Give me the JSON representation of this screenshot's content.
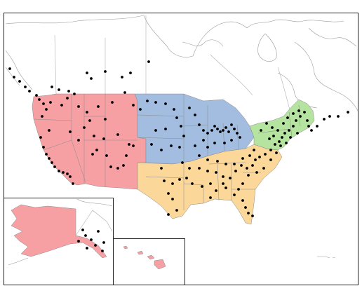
{
  "map": {
    "regions": [
      {
        "name": "west",
        "color": "#f7a0a4"
      },
      {
        "name": "midwest",
        "color": "#a3bde0"
      },
      {
        "name": "south",
        "color": "#fbd79a"
      },
      {
        "name": "northeast",
        "color": "#b5e3a0"
      }
    ],
    "insets": [
      "alaska",
      "hawaii"
    ]
  }
}
